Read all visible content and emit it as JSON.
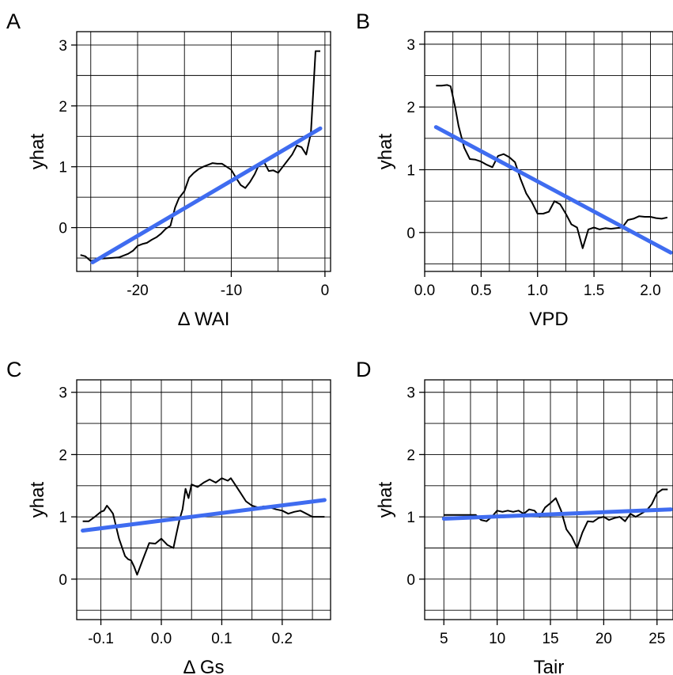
{
  "chart_data": [
    {
      "type": "line",
      "panel_label": "A",
      "xlabel": "Δ WAI",
      "ylabel": "yhat",
      "xlim": [
        -26.5,
        0.6
      ],
      "ylim": [
        -0.72,
        3.22
      ],
      "x_grid": [
        -25,
        -20,
        -15,
        -10,
        -5,
        0
      ],
      "y_grid": [
        -0.5,
        0,
        0.5,
        1,
        1.5,
        2,
        2.5,
        3
      ],
      "x_ticks": [
        -20,
        -10,
        0
      ],
      "x_tick_labels": [
        "-20",
        "-10",
        "0"
      ],
      "y_ticks": [
        0,
        1,
        2,
        3
      ],
      "y_tick_labels": [
        "0",
        "1",
        "2",
        "3"
      ],
      "grid": true,
      "fit_color": "#3F6CF0",
      "series": [
        {
          "x": [
            -26.1,
            -25.6,
            -25.0,
            -24.6,
            -24.0,
            -23.0,
            -22.0,
            -21.0,
            -20.5,
            -20.0,
            -19.5,
            -19.0,
            -18.5,
            -18.0,
            -17.5,
            -17.0,
            -16.5,
            -16.0,
            -15.6,
            -15.0,
            -14.5,
            -14.0,
            -13.5,
            -13.0,
            -12.5,
            -12.0,
            -11.5,
            -11.0,
            -10.5,
            -10.0,
            -9.5,
            -9.0,
            -8.5,
            -8.0,
            -7.5,
            -7.0,
            -6.5,
            -6.0,
            -5.5,
            -5.0,
            -4.5,
            -4.0,
            -3.5,
            -3.0,
            -2.5,
            -2.0,
            -1.5,
            -1.0,
            -0.5
          ],
          "y": [
            -0.45,
            -0.47,
            -0.55,
            -0.53,
            -0.51,
            -0.5,
            -0.49,
            -0.43,
            -0.38,
            -0.3,
            -0.27,
            -0.25,
            -0.2,
            -0.16,
            -0.1,
            -0.02,
            0.03,
            0.33,
            0.48,
            0.6,
            0.82,
            0.9,
            0.96,
            1.0,
            1.03,
            1.06,
            1.05,
            1.05,
            1.0,
            0.95,
            0.82,
            0.7,
            0.65,
            0.75,
            0.88,
            1.05,
            1.08,
            0.93,
            0.94,
            0.9,
            1.0,
            1.1,
            1.2,
            1.35,
            1.32,
            1.2,
            1.55,
            2.9,
            2.9
          ]
        },
        {
          "role": "linear fit",
          "x": [
            -24.8,
            -0.5
          ],
          "y": [
            -0.57,
            1.63
          ]
        }
      ]
    },
    {
      "type": "line",
      "panel_label": "B",
      "xlabel": "VPD",
      "ylabel": "yhat",
      "xlim": [
        0.0,
        2.2
      ],
      "ylim": [
        -0.62,
        3.2
      ],
      "x_grid": [
        0,
        0.25,
        0.5,
        0.75,
        1,
        1.25,
        1.5,
        1.75,
        2
      ],
      "y_grid": [
        -0.5,
        0,
        0.5,
        1,
        1.5,
        2,
        2.5,
        3
      ],
      "x_ticks": [
        0,
        0.5,
        1.0,
        1.5,
        2.0
      ],
      "x_tick_labels": [
        "0.0",
        "0.5",
        "1.0",
        "1.5",
        "2.0"
      ],
      "y_ticks": [
        0,
        1,
        2,
        3
      ],
      "y_tick_labels": [
        "0",
        "1",
        "2",
        "3"
      ],
      "grid": true,
      "fit_color": "#3F6CF0",
      "series": [
        {
          "x": [
            0.1,
            0.15,
            0.2,
            0.23,
            0.27,
            0.3,
            0.35,
            0.4,
            0.45,
            0.5,
            0.55,
            0.6,
            0.65,
            0.7,
            0.75,
            0.8,
            0.85,
            0.9,
            0.95,
            1.0,
            1.05,
            1.1,
            1.15,
            1.2,
            1.25,
            1.3,
            1.35,
            1.4,
            1.45,
            1.5,
            1.55,
            1.6,
            1.65,
            1.7,
            1.75,
            1.8,
            1.85,
            1.9,
            1.95,
            2.0,
            2.05,
            2.1,
            2.15
          ],
          "y": [
            2.34,
            2.34,
            2.35,
            2.33,
            2.0,
            1.7,
            1.35,
            1.17,
            1.16,
            1.13,
            1.08,
            1.04,
            1.22,
            1.25,
            1.2,
            1.12,
            0.85,
            0.62,
            0.48,
            0.3,
            0.3,
            0.33,
            0.5,
            0.45,
            0.3,
            0.13,
            0.08,
            -0.25,
            0.05,
            0.08,
            0.05,
            0.07,
            0.06,
            0.07,
            0.08,
            0.2,
            0.22,
            0.26,
            0.25,
            0.25,
            0.23,
            0.22,
            0.24
          ]
        },
        {
          "role": "linear fit",
          "x": [
            0.1,
            2.18
          ],
          "y": [
            1.68,
            -0.32
          ]
        }
      ]
    },
    {
      "type": "line",
      "panel_label": "C",
      "xlabel": "Δ Gs",
      "ylabel": "yhat",
      "xlim": [
        -0.14,
        0.28
      ],
      "ylim": [
        -0.65,
        3.2
      ],
      "x_grid": [
        -0.1,
        -0.05,
        0,
        0.05,
        0.1,
        0.15,
        0.2,
        0.25
      ],
      "y_grid": [
        -0.5,
        0,
        0.5,
        1,
        1.5,
        2,
        2.5,
        3
      ],
      "x_ticks": [
        -0.1,
        0.0,
        0.1,
        0.2
      ],
      "x_tick_labels": [
        "-0.1",
        "0.0",
        "0.1",
        "0.2"
      ],
      "y_ticks": [
        0,
        1,
        2,
        3
      ],
      "y_tick_labels": [
        "0",
        "1",
        "2",
        "3"
      ],
      "grid": true,
      "fit_color": "#3F6CF0",
      "series": [
        {
          "x": [
            -0.13,
            -0.12,
            -0.11,
            -0.1,
            -0.095,
            -0.09,
            -0.085,
            -0.08,
            -0.07,
            -0.06,
            -0.055,
            -0.05,
            -0.045,
            -0.04,
            -0.03,
            -0.02,
            -0.01,
            0.0,
            0.01,
            0.02,
            0.025,
            0.03,
            0.035,
            0.04,
            0.045,
            0.05,
            0.06,
            0.07,
            0.08,
            0.09,
            0.1,
            0.11,
            0.115,
            0.12,
            0.13,
            0.14,
            0.15,
            0.16,
            0.17,
            0.18,
            0.19,
            0.2,
            0.21,
            0.22,
            0.23,
            0.24,
            0.25,
            0.26,
            0.27
          ],
          "y": [
            0.93,
            0.93,
            1.0,
            1.08,
            1.1,
            1.18,
            1.12,
            1.05,
            0.65,
            0.37,
            0.32,
            0.3,
            0.2,
            0.07,
            0.33,
            0.58,
            0.57,
            0.65,
            0.55,
            0.5,
            0.73,
            0.95,
            1.12,
            1.45,
            1.3,
            1.52,
            1.48,
            1.55,
            1.6,
            1.55,
            1.62,
            1.58,
            1.62,
            1.55,
            1.4,
            1.25,
            1.18,
            1.15,
            1.17,
            1.15,
            1.12,
            1.1,
            1.05,
            1.08,
            1.1,
            1.05,
            1.0,
            1.0,
            1.0
          ]
        },
        {
          "role": "linear fit",
          "x": [
            -0.13,
            0.27
          ],
          "y": [
            0.78,
            1.27
          ]
        }
      ]
    },
    {
      "type": "line",
      "panel_label": "D",
      "xlabel": "Tair",
      "ylabel": "yhat",
      "xlim": [
        3.2,
        26.5
      ],
      "ylim": [
        -0.65,
        3.2
      ],
      "x_grid": [
        5,
        7.5,
        10,
        12.5,
        15,
        17.5,
        20,
        22.5,
        25
      ],
      "y_grid": [
        -0.5,
        0,
        0.5,
        1,
        1.5,
        2,
        2.5,
        3
      ],
      "x_ticks": [
        5,
        10,
        15,
        20,
        25
      ],
      "x_tick_labels": [
        "5",
        "10",
        "15",
        "20",
        "25"
      ],
      "y_ticks": [
        0,
        1,
        2,
        3
      ],
      "y_tick_labels": [
        "0",
        "1",
        "2",
        "3"
      ],
      "grid": true,
      "fit_color": "#3F6CF0",
      "series": [
        {
          "x": [
            5.0,
            6.0,
            7.0,
            8.0,
            8.5,
            9.0,
            9.5,
            10.0,
            10.5,
            11.0,
            11.5,
            12.0,
            12.5,
            13.0,
            13.5,
            14.0,
            14.5,
            15.0,
            15.5,
            16.0,
            16.5,
            17.0,
            17.5,
            18.0,
            18.5,
            19.0,
            19.5,
            20.0,
            20.5,
            21.0,
            21.5,
            22.0,
            22.5,
            23.0,
            23.5,
            24.0,
            24.5,
            25.0,
            25.5,
            26.0
          ],
          "y": [
            1.03,
            1.03,
            1.03,
            1.03,
            0.95,
            0.93,
            1.0,
            1.1,
            1.08,
            1.1,
            1.08,
            1.1,
            1.05,
            1.12,
            1.1,
            1.0,
            1.15,
            1.22,
            1.3,
            1.1,
            0.8,
            0.68,
            0.5,
            0.75,
            0.93,
            0.92,
            0.98,
            1.0,
            0.95,
            0.98,
            1.0,
            0.93,
            1.05,
            1.0,
            1.05,
            1.1,
            1.2,
            1.38,
            1.44,
            1.44
          ]
        },
        {
          "role": "linear fit",
          "x": [
            5.0,
            26.3
          ],
          "y": [
            0.97,
            1.12
          ]
        }
      ]
    }
  ]
}
